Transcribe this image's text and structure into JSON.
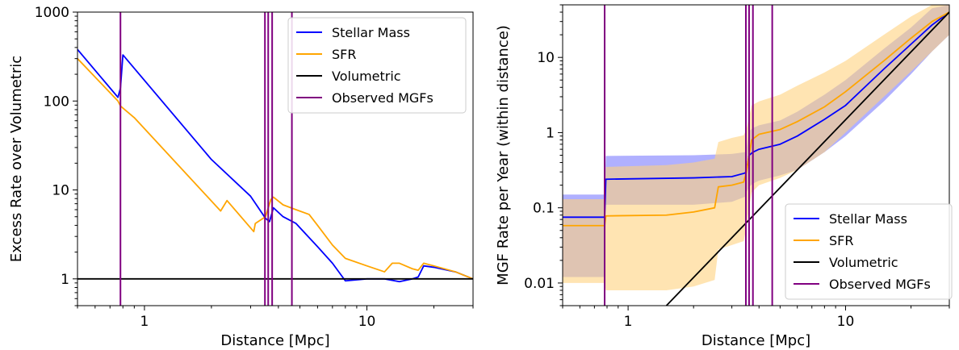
{
  "chart_data": [
    {
      "type": "line",
      "xlabel": "Distance [Mpc]",
      "ylabel": "Excess Rate over Volumetric",
      "xscale": "log",
      "yscale": "log",
      "xlim": [
        0.5,
        30
      ],
      "ylim": [
        0.5,
        1000
      ],
      "x_ticks": [
        {
          "value": 1,
          "label": "1"
        },
        {
          "value": 10,
          "label": "10"
        }
      ],
      "y_ticks": [
        {
          "value": 1,
          "label": "1"
        },
        {
          "value": 10,
          "label": "10"
        },
        {
          "value": 100,
          "label": "100"
        },
        {
          "value": 1000,
          "label": "1000"
        }
      ],
      "grid": false,
      "legend_position": "upper right",
      "series": [
        {
          "name": "Stellar Mass",
          "color": "#0000ff",
          "x": [
            0.5,
            0.76,
            0.78,
            0.8,
            2.0,
            3.0,
            3.5,
            3.65,
            3.8,
            4.2,
            4.8,
            6.0,
            7.0,
            8.0,
            10,
            12,
            14,
            16,
            17,
            18,
            20,
            25,
            30
          ],
          "y": [
            380,
            110,
            140,
            330,
            22,
            8.5,
            4.8,
            4.4,
            6.3,
            5.0,
            4.2,
            2.3,
            1.5,
            0.95,
            1.0,
            1.0,
            0.93,
            1.0,
            1.05,
            1.4,
            1.35,
            1.2,
            1.0
          ]
        },
        {
          "name": "SFR",
          "color": "#ffa500",
          "x": [
            0.5,
            0.76,
            0.78,
            0.9,
            2.2,
            2.35,
            3.1,
            3.15,
            3.5,
            3.7,
            3.8,
            4.2,
            4.8,
            5.5,
            6.0,
            7.0,
            8.0,
            10,
            12,
            13,
            14,
            16,
            17,
            18,
            20,
            25,
            30
          ],
          "y": [
            300,
            100,
            88,
            65,
            5.8,
            7.6,
            3.4,
            4.2,
            5.0,
            7.8,
            8.3,
            6.8,
            6.0,
            5.3,
            4.0,
            2.4,
            1.7,
            1.4,
            1.2,
            1.5,
            1.5,
            1.3,
            1.25,
            1.5,
            1.4,
            1.2,
            1.0
          ]
        },
        {
          "name": "Volumetric",
          "color": "#000000",
          "x": [
            0.5,
            30
          ],
          "y": [
            1,
            1
          ]
        },
        {
          "name": "Observed MGFs",
          "color": "#800080",
          "type": "vlines",
          "x": [
            0.78,
            3.48,
            3.6,
            3.75,
            4.6
          ]
        }
      ]
    },
    {
      "type": "line",
      "xlabel": "Distance [Mpc]",
      "ylabel": "MGF Rate per Year (within distance)",
      "xscale": "log",
      "yscale": "log",
      "xlim": [
        0.5,
        30
      ],
      "ylim": [
        0.005,
        50
      ],
      "x_ticks": [
        {
          "value": 1,
          "label": "1"
        },
        {
          "value": 10,
          "label": "10"
        }
      ],
      "y_ticks": [
        {
          "value": 0.01,
          "label": "0.01"
        },
        {
          "value": 0.1,
          "label": "0.1"
        },
        {
          "value": 1,
          "label": "1"
        },
        {
          "value": 10,
          "label": "10"
        }
      ],
      "grid": false,
      "legend_position": "lower right",
      "series": [
        {
          "name": "Stellar Mass",
          "color": "#0000ff",
          "x": [
            0.5,
            0.78,
            0.79,
            2.0,
            3.0,
            3.45,
            3.5,
            3.6,
            3.75,
            4.0,
            5.0,
            6.0,
            8.0,
            10,
            15,
            20,
            25,
            30
          ],
          "y": [
            0.075,
            0.075,
            0.24,
            0.25,
            0.26,
            0.29,
            0.31,
            0.5,
            0.55,
            0.6,
            0.7,
            0.9,
            1.5,
            2.3,
            7.0,
            15,
            27,
            40
          ]
        },
        {
          "name": "SFR",
          "color": "#ffa500",
          "x": [
            0.5,
            0.78,
            0.79,
            1.5,
            2.0,
            2.5,
            2.6,
            3.0,
            3.4,
            3.5,
            3.6,
            3.7,
            4.0,
            5.0,
            6.0,
            8.0,
            10,
            15,
            20,
            25,
            30
          ],
          "y": [
            0.058,
            0.058,
            0.078,
            0.08,
            0.088,
            0.1,
            0.19,
            0.2,
            0.22,
            0.3,
            0.5,
            0.8,
            0.95,
            1.1,
            1.4,
            2.2,
            3.5,
            9.0,
            18,
            30,
            40
          ]
        },
        {
          "name": "Volumetric",
          "color": "#000000",
          "x": [
            1.5,
            30
          ],
          "y": [
            0.005,
            40
          ]
        },
        {
          "name": "Observed MGFs",
          "color": "#800080",
          "type": "vlines",
          "x": [
            0.78,
            3.48,
            3.6,
            3.75,
            4.6
          ]
        }
      ],
      "bands": [
        {
          "series": "Stellar Mass",
          "color": "#7b7bff",
          "x": [
            0.5,
            0.78,
            0.79,
            2.0,
            3.0,
            3.45,
            3.5,
            3.6,
            3.75,
            4.0,
            5.0,
            6.0,
            8.0,
            10,
            15,
            20,
            25,
            30
          ],
          "lower": [
            0.012,
            0.012,
            0.11,
            0.11,
            0.12,
            0.14,
            0.16,
            0.19,
            0.21,
            0.23,
            0.27,
            0.32,
            0.55,
            0.9,
            2.6,
            6.0,
            12,
            20
          ],
          "upper": [
            0.15,
            0.15,
            0.49,
            0.5,
            0.52,
            0.55,
            0.6,
            1.05,
            1.15,
            1.25,
            1.45,
            1.9,
            3.2,
            5.0,
            13,
            25,
            45,
            50
          ]
        },
        {
          "series": "SFR",
          "color": "#ffd27f",
          "x": [
            0.5,
            0.78,
            0.79,
            1.5,
            2.0,
            2.5,
            2.6,
            3.0,
            3.4,
            3.5,
            3.6,
            3.7,
            4.0,
            5.0,
            6.0,
            8.0,
            10,
            15,
            20,
            25,
            30
          ],
          "lower": [
            0.01,
            0.01,
            0.008,
            0.008,
            0.009,
            0.011,
            0.028,
            0.032,
            0.036,
            0.055,
            0.1,
            0.16,
            0.2,
            0.25,
            0.32,
            0.55,
            1.0,
            3.0,
            6.5,
            12,
            20
          ],
          "upper": [
            0.13,
            0.13,
            0.35,
            0.37,
            0.4,
            0.45,
            0.75,
            0.85,
            0.92,
            1.1,
            1.6,
            2.3,
            2.6,
            3.2,
            4.2,
            6.3,
            9.0,
            20,
            35,
            50,
            50
          ]
        }
      ]
    }
  ]
}
